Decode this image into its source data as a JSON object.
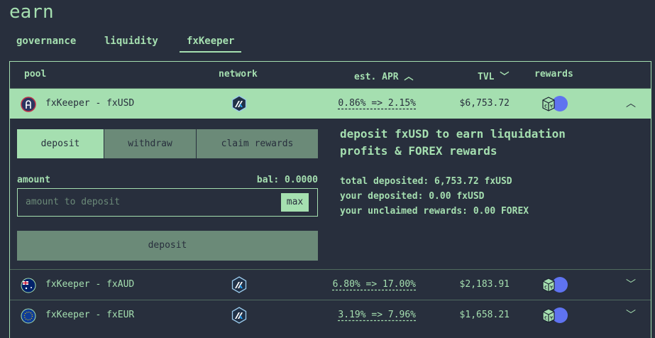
{
  "title": "earn",
  "tabs": [
    {
      "label": "governance"
    },
    {
      "label": "liquidity"
    },
    {
      "label": "fxKeeper",
      "active": true
    }
  ],
  "table": {
    "headers": {
      "pool": "pool",
      "network": "network",
      "apr": "est. APR",
      "apr_sort": "chevron-up",
      "tvl": "TVL",
      "tvl_sort": "chevron-down",
      "rewards": "rewards"
    },
    "rows": [
      {
        "pool": "fxKeeper - fxUSD",
        "icon": "fxusd-icon",
        "network": "arbitrum",
        "apr": "0.86% => 2.15%",
        "tvl": "$6,753.72",
        "rewards": "forex-icon",
        "expanded": true
      },
      {
        "pool": "fxKeeper - fxAUD",
        "icon": "australia-flag-icon",
        "network": "arbitrum",
        "apr": "6.80% => 17.00%",
        "tvl": "$2,183.91",
        "rewards": "forex-icon",
        "expanded": false
      },
      {
        "pool": "fxKeeper - fxEUR",
        "icon": "eu-flag-icon",
        "network": "arbitrum",
        "apr": "3.19% => 7.96%",
        "tvl": "$1,658.21",
        "rewards": "forex-icon",
        "expanded": false
      }
    ]
  },
  "panel": {
    "tabs": [
      {
        "label": "deposit"
      },
      {
        "label": "withdraw"
      },
      {
        "label": "claim rewards"
      }
    ],
    "amount_label": "amount",
    "balance": "bal: 0.0000",
    "placeholder": "amount to deposit",
    "max": "max",
    "submit": "deposit",
    "headline": "deposit fxUSD to earn liquidation profits & FOREX rewards",
    "stats": [
      "total deposited: 6,753.72 fxUSD",
      "your deposited: 0.00 fxUSD",
      "your unclaimed rewards: 0.00 FOREX"
    ]
  },
  "colors": {
    "background": "#282f3d",
    "accent": "#a5dfb0",
    "muted": "#6b8a78"
  }
}
